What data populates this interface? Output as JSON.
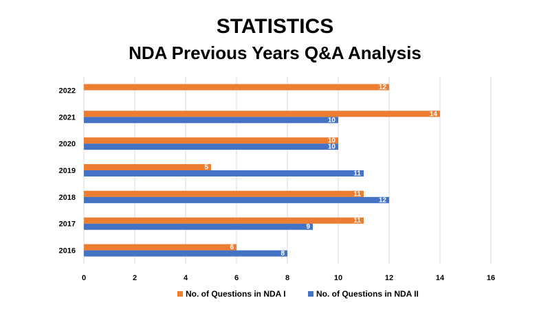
{
  "colors": {
    "series1": "#ED7D31",
    "series2": "#4472C4",
    "grid": "#D9D9D9",
    "background": "#FFFFFF"
  },
  "chart_data": {
    "type": "bar",
    "orientation": "horizontal",
    "title": "STATISTICS",
    "subtitle": "NDA Previous Years Q&A Analysis",
    "categories": [
      "2016",
      "2017",
      "2018",
      "2019",
      "2020",
      "2021",
      "2022"
    ],
    "series": [
      {
        "name": "No. of Questions in NDA I",
        "values": [
          6,
          11,
          11,
          5,
          10,
          14,
          12
        ]
      },
      {
        "name": "No. of Questions in NDA II",
        "values": [
          8,
          9,
          12,
          11,
          10,
          10,
          null
        ]
      }
    ],
    "xlim": [
      0,
      16
    ],
    "xticks": [
      0,
      2,
      4,
      6,
      8,
      10,
      12,
      14,
      16
    ],
    "grid": true,
    "legend_position": "bottom",
    "data_labels": true
  }
}
